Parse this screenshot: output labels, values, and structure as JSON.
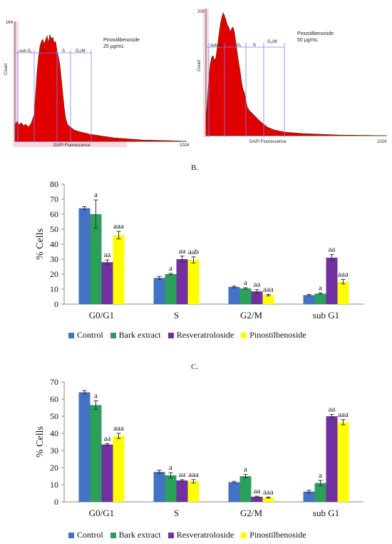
{
  "histograms": [
    {
      "ymax_label": "164",
      "ylabel": "Count",
      "xlabel": "DAPI Fluorescence",
      "xmax_label": "1024",
      "gates": [
        "sub G",
        "G",
        "S",
        "G"
      ],
      "gate_subs": [
        "1",
        "1",
        "",
        "2"
      ],
      "gate_tail": [
        "",
        "",
        "",
        "/M"
      ],
      "title_line1": "Pinostilbenoside",
      "title_line2": "25 μg/mL"
    },
    {
      "ymax_label": "200",
      "ylabel": "Count",
      "xlabel": "DAPI Fluorescence",
      "xmax_label": "1024",
      "gates": [
        "sub G",
        "G",
        "S",
        "G"
      ],
      "gate_subs": [
        "1",
        "1",
        "",
        "2"
      ],
      "gate_tail": [
        "",
        "",
        "",
        "/M"
      ],
      "title_line1": "Pinostilbenoside",
      "title_line2": "50 μg/mL"
    }
  ],
  "panel_b_label": "B.",
  "panel_c_label": "C.",
  "legend": [
    "Control",
    "Bark extract",
    "Resveratroloside",
    "Pinostilbenoside"
  ],
  "colors": [
    "#4472c4",
    "#2ca05a",
    "#7030a0",
    "#ffff00"
  ],
  "chart_data": [
    {
      "type": "bar",
      "panel": "B.",
      "ylabel": "% Cells",
      "ylim": [
        0,
        80
      ],
      "yticks": [
        0,
        10,
        20,
        30,
        40,
        50,
        60,
        70,
        80
      ],
      "categories": [
        "G0/G1",
        "S",
        "G2/M",
        "sub G1"
      ],
      "series": [
        {
          "name": "Control",
          "values": [
            64,
            17.5,
            11.5,
            6
          ],
          "errors": [
            1,
            1,
            0.5,
            0.5
          ],
          "labels": [
            "",
            "",
            "",
            ""
          ]
        },
        {
          "name": "Bark extract",
          "values": [
            60,
            20,
            10.5,
            7
          ],
          "errors": [
            9.5,
            0.5,
            0.5,
            0.5
          ],
          "labels": [
            "a",
            "a",
            "a",
            "a"
          ]
        },
        {
          "name": "Resveratroloside",
          "values": [
            28,
            30,
            8.5,
            31
          ],
          "errors": [
            1.5,
            2,
            1.2,
            2
          ],
          "labels": [
            "aa",
            "aa",
            "aa",
            "aa"
          ]
        },
        {
          "name": "Pinostilbenoside",
          "values": [
            46,
            29.5,
            6,
            15
          ],
          "errors": [
            2.5,
            2,
            0.5,
            1.5
          ],
          "labels": [
            "aaa",
            "aab",
            "aaa",
            "aaa"
          ]
        }
      ]
    },
    {
      "type": "bar",
      "panel": "C.",
      "ylabel": "% Cells",
      "ylim": [
        0,
        70
      ],
      "yticks": [
        0,
        10,
        20,
        30,
        40,
        50,
        60,
        70
      ],
      "categories": [
        "G0/G1",
        "S",
        "G2/M",
        "sub G1"
      ],
      "series": [
        {
          "name": "Control",
          "values": [
            64,
            17.5,
            11.5,
            6
          ],
          "errors": [
            1,
            1,
            0.5,
            0.8
          ],
          "labels": [
            "",
            "",
            "",
            ""
          ]
        },
        {
          "name": "Bark extract",
          "values": [
            56.5,
            15.5,
            15,
            11
          ],
          "errors": [
            2.5,
            1.5,
            1,
            1.5
          ],
          "labels": [
            "a",
            "a",
            "a",
            "a"
          ]
        },
        {
          "name": "Resveratroloside",
          "values": [
            33.5,
            12.5,
            3,
            50
          ],
          "errors": [
            0.5,
            0.5,
            0.3,
            1
          ],
          "labels": [
            "aa",
            "aa",
            "aa",
            "aa"
          ]
        },
        {
          "name": "Pinostilbenoside",
          "values": [
            38.5,
            12,
            2.5,
            46.5
          ],
          "errors": [
            1.5,
            1,
            0.3,
            1.5
          ],
          "labels": [
            "aaa",
            "aaa",
            "aaa",
            "aaa"
          ]
        }
      ]
    }
  ]
}
